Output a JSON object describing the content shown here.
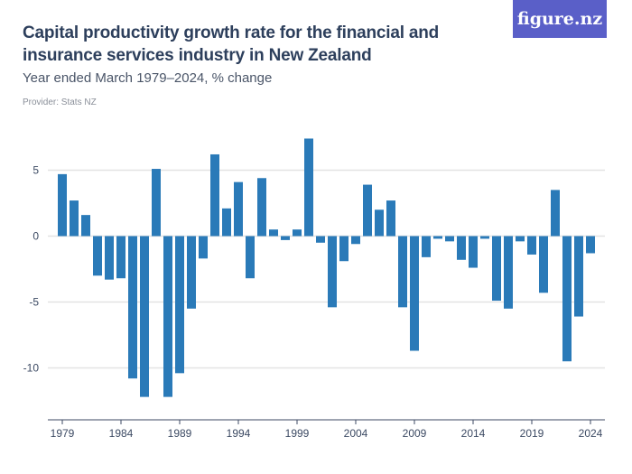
{
  "logo": "figure.nz",
  "chart_data": {
    "type": "bar",
    "title": "Capital productivity growth rate for the financial and insurance services industry in New Zealand",
    "subtitle": "Year ended March 1979–2024, % change",
    "provider": "Provider: Stats NZ",
    "color": "#2a7ab8",
    "categories": [
      1979,
      1980,
      1981,
      1982,
      1983,
      1984,
      1985,
      1986,
      1987,
      1988,
      1989,
      1990,
      1991,
      1992,
      1993,
      1994,
      1995,
      1996,
      1997,
      1998,
      1999,
      2000,
      2001,
      2002,
      2003,
      2004,
      2005,
      2006,
      2007,
      2008,
      2009,
      2010,
      2011,
      2012,
      2013,
      2014,
      2015,
      2016,
      2017,
      2018,
      2019,
      2020,
      2021,
      2022,
      2023,
      2024
    ],
    "values": [
      4.7,
      2.7,
      1.6,
      -3.0,
      -3.3,
      -3.2,
      -10.8,
      -12.2,
      5.1,
      -12.2,
      -10.4,
      -5.5,
      -1.7,
      6.2,
      2.1,
      4.1,
      -3.2,
      4.4,
      0.5,
      -0.3,
      0.5,
      7.4,
      -0.5,
      -5.4,
      -1.9,
      -0.6,
      3.9,
      2.0,
      2.7,
      -5.4,
      -8.7,
      -1.6,
      -0.2,
      -0.4,
      -1.8,
      -2.4,
      -0.2,
      -4.9,
      -5.5,
      -0.4,
      -1.4,
      -4.3,
      3.5,
      -9.5,
      -6.1,
      -1.3
    ],
    "xticks": [
      "1979",
      "1984",
      "1989",
      "1994",
      "1999",
      "2004",
      "2009",
      "2014",
      "2019",
      "2024"
    ],
    "yticks": [
      "5",
      "0",
      "-5",
      "-10"
    ],
    "ytick_values": [
      5,
      0,
      -5,
      -10
    ],
    "ylim": [
      -14,
      7.6
    ],
    "grid": true,
    "xlabel": "",
    "ylabel": ""
  }
}
